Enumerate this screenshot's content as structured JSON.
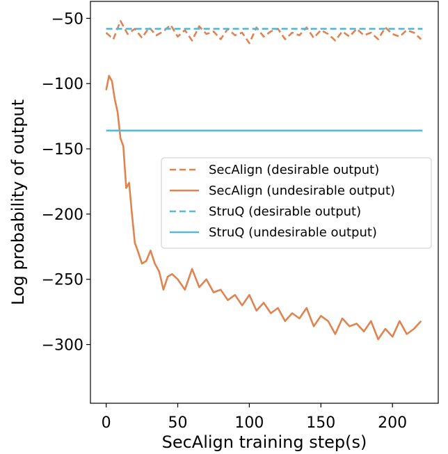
{
  "chart_data": {
    "type": "line",
    "title": "",
    "xlabel": "SecAlign training step(s)",
    "ylabel": "Log probability of output",
    "xlim": [
      -11,
      232
    ],
    "ylim": [
      -345,
      -37
    ],
    "xticks": [
      0,
      50,
      100,
      150,
      200
    ],
    "yticks": [
      -50,
      -100,
      -150,
      -200,
      -250,
      -300
    ],
    "xtick_labels": [
      "0",
      "50",
      "100",
      "150",
      "200"
    ],
    "ytick_labels": [
      "−50",
      "−100",
      "−150",
      "−200",
      "−250",
      "−300"
    ],
    "grid": false,
    "legend_position": "center-right",
    "colors": {
      "secalign": "#e0834f",
      "struq": "#5cb6d6"
    },
    "series": [
      {
        "name": "SecAlign (desirable output)",
        "color": "#e0834f",
        "style": "dashed",
        "x": [
          0,
          5,
          10,
          15,
          20,
          25,
          30,
          35,
          40,
          45,
          50,
          55,
          60,
          65,
          70,
          75,
          80,
          85,
          90,
          95,
          100,
          105,
          110,
          115,
          120,
          125,
          130,
          135,
          140,
          145,
          150,
          155,
          160,
          165,
          170,
          175,
          180,
          185,
          190,
          195,
          200,
          205,
          210,
          215,
          220
        ],
        "y": [
          -61,
          -66,
          -52,
          -62,
          -58,
          -65,
          -57,
          -63,
          -60,
          -55,
          -64,
          -59,
          -67,
          -56,
          -62,
          -60,
          -66,
          -58,
          -63,
          -61,
          -69,
          -57,
          -64,
          -60,
          -58,
          -66,
          -61,
          -63,
          -57,
          -65,
          -59,
          -62,
          -67,
          -60,
          -64,
          -58,
          -63,
          -61,
          -66,
          -57,
          -62,
          -64,
          -59,
          -61,
          -66
        ]
      },
      {
        "name": "SecAlign (undesirable output)",
        "color": "#e0834f",
        "style": "solid",
        "x": [
          0,
          2,
          4,
          6,
          8,
          10,
          12,
          14,
          16,
          18,
          20,
          22,
          25,
          28,
          31,
          34,
          37,
          40,
          43,
          46,
          50,
          55,
          60,
          65,
          70,
          75,
          80,
          85,
          90,
          95,
          100,
          105,
          110,
          115,
          120,
          125,
          130,
          135,
          140,
          145,
          150,
          155,
          160,
          165,
          170,
          175,
          180,
          185,
          190,
          195,
          200,
          205,
          210,
          215,
          220
        ],
        "y": [
          -105,
          -94,
          -98,
          -112,
          -122,
          -142,
          -148,
          -180,
          -176,
          -200,
          -222,
          -228,
          -238,
          -236,
          -228,
          -238,
          -244,
          -258,
          -248,
          -246,
          -250,
          -258,
          -242,
          -256,
          -250,
          -260,
          -258,
          -266,
          -262,
          -270,
          -262,
          -274,
          -268,
          -276,
          -272,
          -282,
          -276,
          -280,
          -272,
          -286,
          -278,
          -282,
          -292,
          -280,
          -286,
          -284,
          -290,
          -282,
          -296,
          -288,
          -294,
          -282,
          -292,
          -288,
          -282
        ]
      },
      {
        "name": "StruQ (desirable output)",
        "color": "#5cb6d6",
        "style": "dashed",
        "x": [
          0,
          221
        ],
        "y": [
          -58,
          -58
        ]
      },
      {
        "name": "StruQ (undesirable output)",
        "color": "#5cb6d6",
        "style": "solid",
        "x": [
          0,
          221
        ],
        "y": [
          -136,
          -136
        ]
      }
    ]
  }
}
